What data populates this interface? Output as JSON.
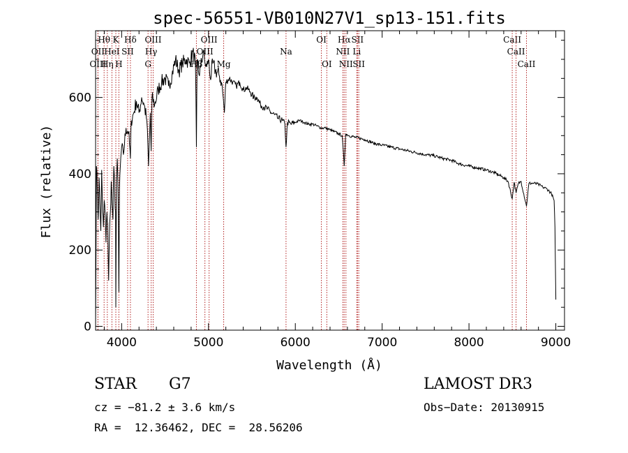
{
  "chart_data": {
    "type": "line",
    "title": "spec-56551-VB010N27V1_sp13-151.fits",
    "xlabel": "Wavelength (Å)",
    "ylabel": "Flux (relative)",
    "xlim": [
      3700,
      9100
    ],
    "ylim": [
      -10,
      775
    ],
    "x_ticks": [
      4000,
      5000,
      6000,
      7000,
      8000,
      9000
    ],
    "y_ticks": [
      0,
      200,
      400,
      600
    ],
    "x_tick_labels": [
      "4000",
      "5000",
      "6000",
      "7000",
      "8000",
      "9000"
    ],
    "y_tick_labels": [
      "0",
      "200",
      "400",
      "600"
    ],
    "series": [
      {
        "name": "spectrum",
        "x": [
          3700,
          3710,
          3720,
          3730,
          3740,
          3750,
          3760,
          3770,
          3780,
          3790,
          3800,
          3810,
          3820,
          3830,
          3840,
          3850,
          3860,
          3870,
          3880,
          3890,
          3900,
          3910,
          3920,
          3930,
          3933,
          3940,
          3950,
          3960,
          3968,
          3975,
          3985,
          4000,
          4020,
          4050,
          4080,
          4101,
          4110,
          4140,
          4170,
          4200,
          4230,
          4260,
          4290,
          4310,
          4330,
          4340,
          4350,
          4380,
          4420,
          4460,
          4500,
          4540,
          4580,
          4620,
          4660,
          4700,
          4740,
          4780,
          4820,
          4850,
          4861,
          4870,
          4890,
          4910,
          4940,
          4960,
          4980,
          5000,
          5020,
          5050,
          5080,
          5120,
          5150,
          5170,
          5183,
          5200,
          5240,
          5280,
          5320,
          5360,
          5400,
          5440,
          5480,
          5520,
          5560,
          5600,
          5640,
          5680,
          5720,
          5760,
          5800,
          5850,
          5880,
          5893,
          5910,
          5950,
          6000,
          6050,
          6100,
          6150,
          6200,
          6250,
          6300,
          6350,
          6400,
          6450,
          6500,
          6540,
          6563,
          6580,
          6620,
          6700,
          6800,
          6900,
          7000,
          7100,
          7200,
          7300,
          7400,
          7500,
          7600,
          7700,
          7800,
          7900,
          8000,
          8100,
          8200,
          8300,
          8400,
          8450,
          8498,
          8520,
          8542,
          8570,
          8600,
          8662,
          8690,
          8750,
          8800,
          8850,
          8900,
          8950,
          8980,
          8990,
          9000
        ],
        "y": [
          0,
          420,
          360,
          280,
          390,
          320,
          250,
          410,
          300,
          260,
          330,
          290,
          220,
          300,
          270,
          120,
          240,
          300,
          380,
          320,
          280,
          420,
          350,
          300,
          50,
          380,
          440,
          330,
          90,
          360,
          420,
          470,
          450,
          520,
          510,
          440,
          540,
          560,
          590,
          560,
          600,
          580,
          540,
          420,
          560,
          460,
          600,
          580,
          620,
          640,
          650,
          630,
          660,
          700,
          670,
          690,
          700,
          690,
          720,
          690,
          470,
          700,
          660,
          680,
          720,
          690,
          680,
          700,
          650,
          690,
          670,
          660,
          640,
          600,
          560,
          640,
          650,
          640,
          630,
          640,
          620,
          625,
          615,
          600,
          600,
          580,
          575,
          570,
          560,
          555,
          545,
          540,
          530,
          470,
          535,
          530,
          535,
          540,
          535,
          530,
          530,
          525,
          520,
          520,
          515,
          510,
          505,
          500,
          420,
          505,
          500,
          495,
          490,
          480,
          475,
          470,
          465,
          460,
          455,
          450,
          447,
          440,
          435,
          425,
          420,
          415,
          410,
          402,
          390,
          380,
          335,
          378,
          350,
          375,
          380,
          315,
          375,
          375,
          372,
          365,
          360,
          348,
          330,
          260,
          70
        ]
      }
    ],
    "line_markers": [
      {
        "label": "Hθ",
        "x": 3798,
        "row": 0
      },
      {
        "label": "K",
        "x": 3933,
        "row": 0
      },
      {
        "label": "Hδ",
        "x": 4101,
        "row": 0
      },
      {
        "label": "OIII",
        "x": 4363,
        "row": 0
      },
      {
        "label": "OIII",
        "x": 5007,
        "row": 0
      },
      {
        "label": "OI",
        "x": 6300,
        "row": 0
      },
      {
        "label": "Hα",
        "x": 6563,
        "row": 0
      },
      {
        "label": "SII",
        "x": 6716,
        "row": 0
      },
      {
        "label": "CaII",
        "x": 8498,
        "row": 0
      },
      {
        "label": "OII",
        "x": 3727,
        "row": 1
      },
      {
        "label": "HeI",
        "x": 3888,
        "row": 1
      },
      {
        "label": "SII",
        "x": 4069,
        "row": 1
      },
      {
        "label": "Hγ",
        "x": 4340,
        "row": 1
      },
      {
        "label": "OIII",
        "x": 4959,
        "row": 1
      },
      {
        "label": "Na",
        "x": 5893,
        "row": 1
      },
      {
        "label": "NII",
        "x": 6548,
        "row": 1
      },
      {
        "label": "Li",
        "x": 6708,
        "row": 1
      },
      {
        "label": "CaII",
        "x": 8542,
        "row": 1
      },
      {
        "label": "OIII",
        "x": 3727,
        "row": 2
      },
      {
        "label": "Hη",
        "x": 3835,
        "row": 2
      },
      {
        "label": "H",
        "x": 3968,
        "row": 2
      },
      {
        "label": "G",
        "x": 4304,
        "row": 2
      },
      {
        "label": "Hβ",
        "x": 4861,
        "row": 2
      },
      {
        "label": "Mg",
        "x": 5175,
        "row": 2
      },
      {
        "label": "OI",
        "x": 6363,
        "row": 2
      },
      {
        "label": "NII",
        "x": 6583,
        "row": 2
      },
      {
        "label": "SII",
        "x": 6731,
        "row": 2
      },
      {
        "label": "CaII",
        "x": 8662,
        "row": 2
      }
    ],
    "marker_color": "#b22222",
    "line_color": "#000000"
  },
  "info": {
    "object_class": "STAR",
    "subclass": "G7",
    "survey": "LAMOST DR3",
    "cz": "cz = −81.2 ± 3.6 km/s",
    "obs_date": "Obs−Date: 20130915",
    "coords": "RA =  12.36462, DEC =  28.56206"
  }
}
